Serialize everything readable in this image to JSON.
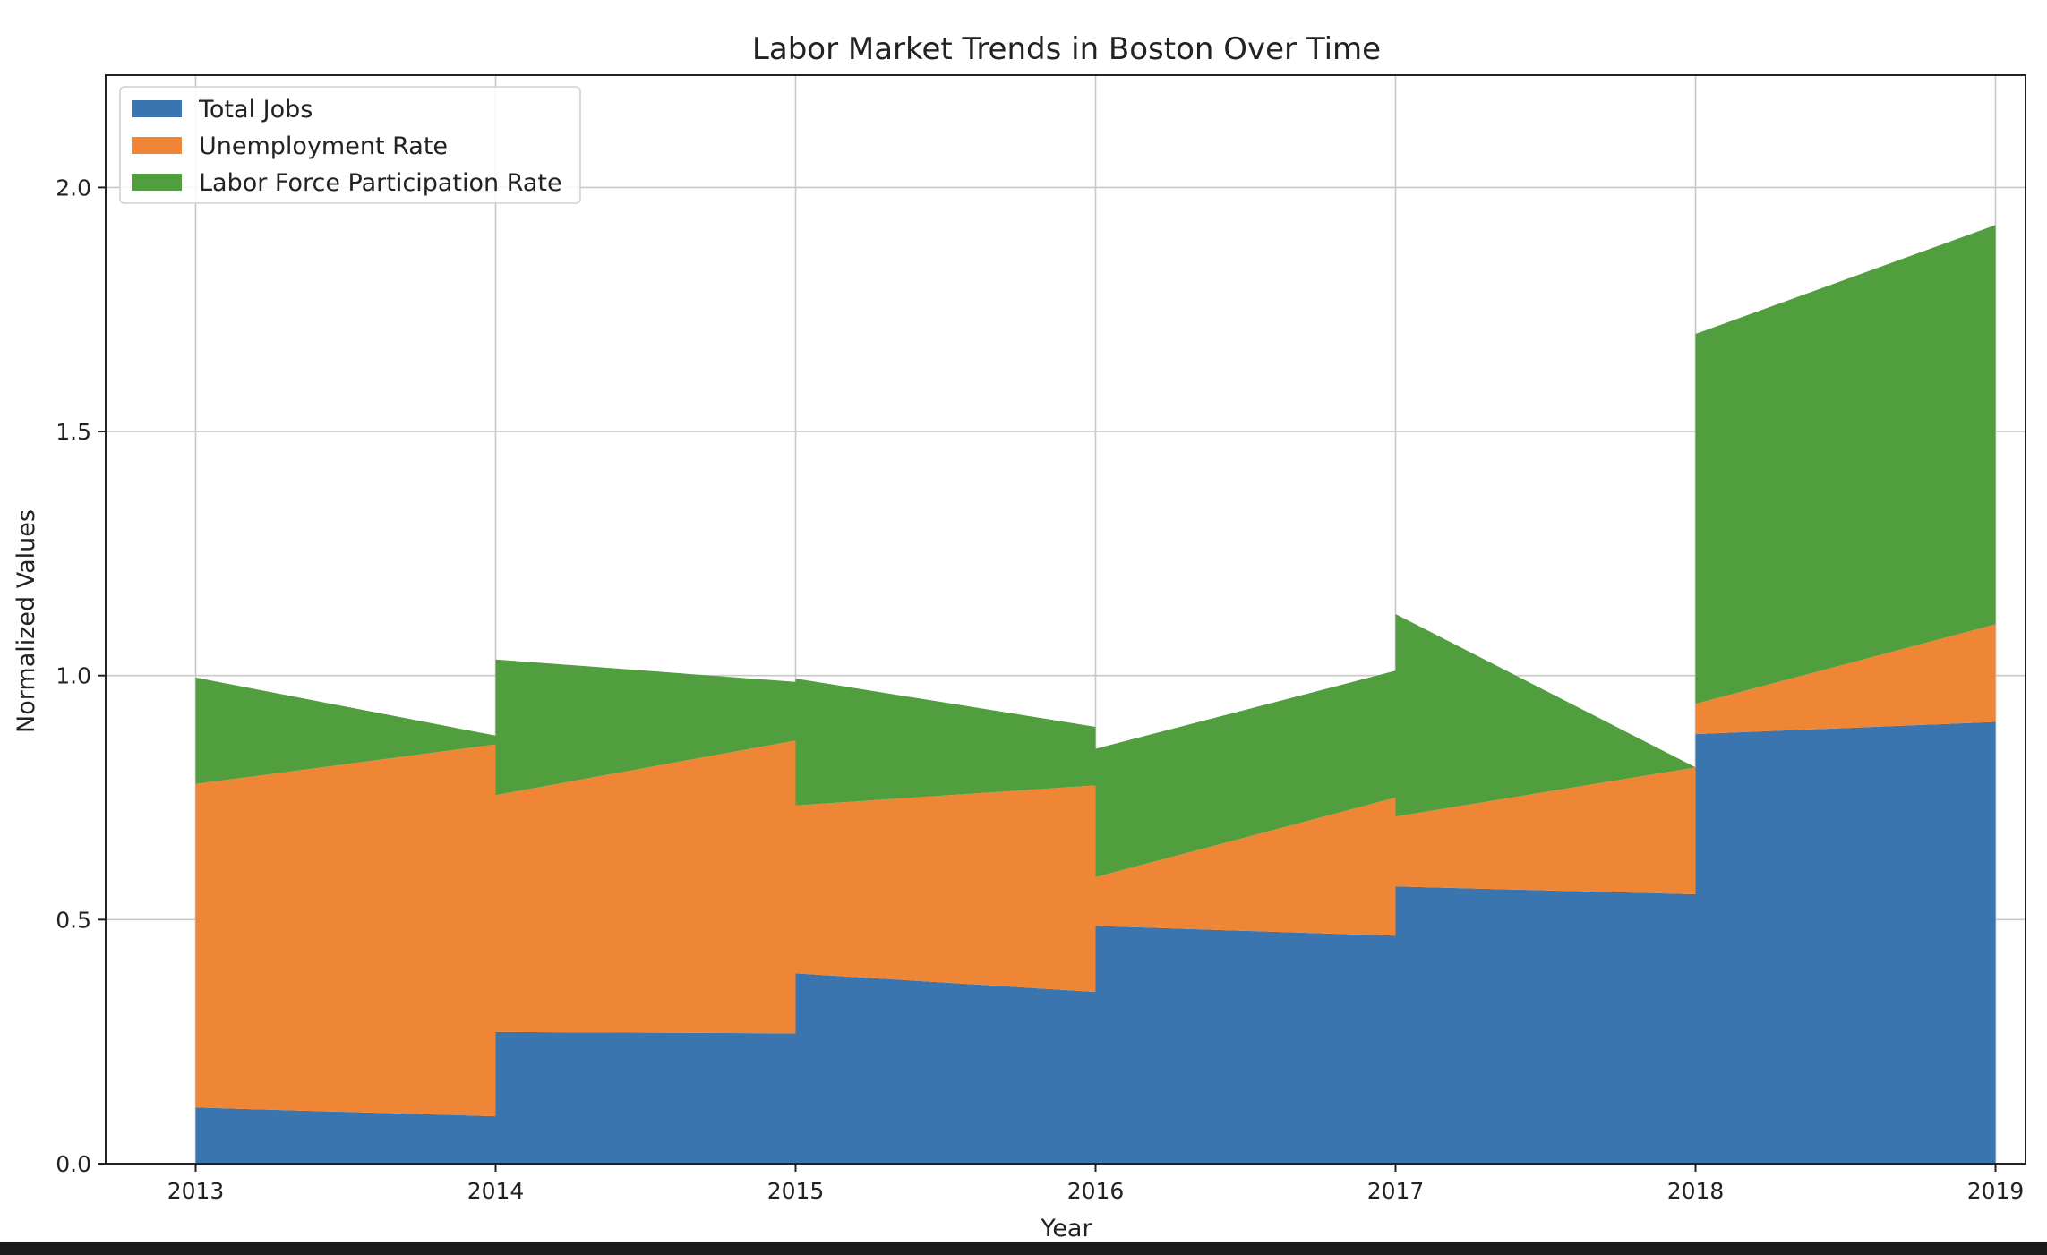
{
  "chart_data": {
    "type": "area",
    "title": "Labor Market Trends in Boston Over Time",
    "xlabel": "Year",
    "ylabel": "Normalized Values",
    "xlim": [
      2012.7,
      2019.1
    ],
    "ylim": [
      0,
      2.23
    ],
    "yticks": [
      "0.0",
      "0.5",
      "1.0",
      "1.5",
      "2.0"
    ],
    "ytick_values": [
      0,
      0.5,
      1.0,
      1.5,
      2.0
    ],
    "xticks": [
      "2013",
      "2014",
      "2015",
      "2016",
      "2017",
      "2018",
      "2019"
    ],
    "xtick_values": [
      2013,
      2014,
      2015,
      2016,
      2017,
      2018,
      2019
    ],
    "grid": true,
    "legend_position": "top-left",
    "colors": {
      "Total Jobs": "#3a75af",
      "Unemployment Rate": "#ef8636",
      "Labor Force Participation Rate": "#519e3e"
    },
    "series": [
      {
        "name": "Total Jobs",
        "segments": [
          [
            [
              2013,
              0.115
            ],
            [
              2014,
              0.097
            ]
          ],
          [
            [
              2014,
              0.27
            ],
            [
              2015,
              0.267
            ]
          ],
          [
            [
              2015,
              0.39
            ],
            [
              2016,
              0.352
            ]
          ],
          [
            [
              2016,
              0.487
            ],
            [
              2017,
              0.467
            ]
          ],
          [
            [
              2017,
              0.568
            ],
            [
              2018,
              0.552
            ]
          ],
          [
            [
              2018,
              0.88
            ],
            [
              2019,
              0.905
            ]
          ]
        ]
      },
      {
        "name": "Unemployment Rate",
        "segments": [
          [
            [
              2013,
              0.663
            ],
            [
              2014,
              0.762
            ]
          ],
          [
            [
              2014,
              0.485
            ],
            [
              2015,
              0.6
            ]
          ],
          [
            [
              2015,
              0.344
            ],
            [
              2016,
              0.423
            ]
          ],
          [
            [
              2016,
              0.1
            ],
            [
              2017,
              0.283
            ]
          ],
          [
            [
              2017,
              0.143
            ],
            [
              2018,
              0.26
            ]
          ],
          [
            [
              2018,
              0.062
            ],
            [
              2019,
              0.2
            ]
          ]
        ]
      },
      {
        "name": "Labor Force Participation Rate",
        "segments": [
          [
            [
              2013,
              0.218
            ],
            [
              2014,
              0.018
            ]
          ],
          [
            [
              2014,
              0.278
            ],
            [
              2015,
              0.12
            ]
          ],
          [
            [
              2015,
              0.26
            ],
            [
              2016,
              0.12
            ]
          ],
          [
            [
              2016,
              0.263
            ],
            [
              2017,
              0.26
            ]
          ],
          [
            [
              2017,
              0.415
            ],
            [
              2018,
              0.0
            ]
          ],
          [
            [
              2018,
              0.758
            ],
            [
              2019,
              0.818
            ]
          ]
        ]
      }
    ]
  }
}
